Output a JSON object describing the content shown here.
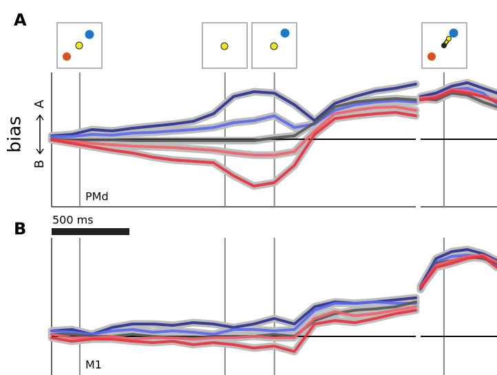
{
  "chart_data": [
    {
      "type": "line",
      "panel_label": "A",
      "area_label": "PMd",
      "ylabel": "bias",
      "y_up_label": "A",
      "y_down_label": "B",
      "ylim": [
        -9.8,
        9.7
      ],
      "hline": 0,
      "scalebar": {
        "value": 500,
        "label": "500 ms"
      },
      "segments": [
        {
          "xlim": [
            0,
            2340
          ],
          "vlines": [
            181,
            1114,
            1432
          ],
          "x": [
            0,
            130,
            260,
            390,
            520,
            650,
            780,
            910,
            1040,
            1170,
            1300,
            1430,
            1560,
            1690,
            1820,
            1950,
            2080,
            2210,
            2340
          ],
          "series": [
            {
              "color": "#2b2f8f",
              "values": [
                0.5,
                0.7,
                1.4,
                1.2,
                1.6,
                1.9,
                2.2,
                2.6,
                3.7,
                6.2,
                6.9,
                6.7,
                5.0,
                2.7,
                5.2,
                6.2,
                7.0,
                7.4,
                8.0
              ]
            },
            {
              "color": "#5b67f0",
              "values": [
                0.4,
                0.4,
                0.7,
                0.6,
                0.9,
                1.0,
                1.2,
                1.4,
                1.7,
                2.4,
                2.7,
                3.4,
                1.7,
                2.2,
                4.2,
                5.0,
                5.4,
                5.6,
                5.4
              ]
            },
            {
              "color": "#555555",
              "values": [
                0,
                -0.1,
                -0.1,
                -0.1,
                -0.2,
                -0.2,
                -0.2,
                -0.2,
                -0.2,
                -0.2,
                -0.2,
                0.2,
                0.5,
                2.4,
                4.7,
                5.4,
                5.7,
                5.9,
                5.7
              ]
            },
            {
              "color": "#f0606a",
              "values": [
                -0.1,
                -0.3,
                -0.6,
                -0.8,
                -1,
                -1.1,
                -1.2,
                -1.4,
                -1.6,
                -2,
                -2.3,
                -2.3,
                -1.8,
                1.2,
                3.7,
                4.2,
                4.6,
                4.7,
                4.2
              ]
            },
            {
              "color": "#e8303c",
              "values": [
                -0.1,
                -0.6,
                -1.1,
                -1.6,
                -2,
                -2.6,
                -3,
                -3.2,
                -3.4,
                -5.3,
                -6.8,
                -6.3,
                -3.8,
                0.7,
                3,
                3.4,
                3.7,
                3.9,
                3.4
              ]
            }
          ]
        },
        {
          "xlim": [
            0,
            490
          ],
          "vlines": [
            150
          ],
          "x": [
            0,
            100,
            200,
            300,
            400,
            490
          ],
          "series": [
            {
              "color": "#2b2f8f",
              "values": [
                6.2,
                6.7,
                7.7,
                8.2,
                7.4,
                6.7
              ]
            },
            {
              "color": "#5b67f0",
              "values": [
                5.7,
                6.2,
                7.2,
                7.4,
                6.7,
                5.2
              ]
            },
            {
              "color": "#555555",
              "values": [
                5.9,
                5.7,
                6.7,
                6.4,
                5.4,
                4.7
              ]
            },
            {
              "color": "#f0606a",
              "values": [
                6.0,
                6.2,
                7.2,
                7.0,
                6.2,
                5.7
              ]
            },
            {
              "color": "#e8303c",
              "values": [
                5.7,
                6.0,
                7.0,
                6.7,
                6.2,
                5.4
              ]
            }
          ]
        }
      ]
    },
    {
      "type": "line",
      "panel_label": "B",
      "area_label": "M1",
      "ylim": [
        -5.6,
        14.3
      ],
      "hline": 0,
      "segments": [
        {
          "xlim": [
            0,
            2340
          ],
          "vlines": [
            181,
            1114,
            1432
          ],
          "x": [
            0,
            130,
            260,
            390,
            520,
            650,
            780,
            910,
            1040,
            1170,
            1300,
            1430,
            1560,
            1690,
            1820,
            1950,
            2080,
            2210,
            2340
          ],
          "series": [
            {
              "color": "#2b2f8f",
              "values": [
                0.8,
                1.0,
                0.3,
                1.3,
                1.8,
                1.8,
                1.6,
                2.0,
                1.8,
                1.3,
                1.8,
                2.6,
                1.8,
                4.3,
                5.0,
                4.8,
                5.0,
                5.3,
                5.6
              ]
            },
            {
              "color": "#5b67f0",
              "values": [
                0.8,
                0.6,
                0.3,
                0.8,
                1.0,
                0.6,
                0.8,
                0.6,
                0.3,
                1.0,
                1.0,
                0.8,
                1.0,
                3.8,
                4.8,
                4.8,
                5.0,
                4.8,
                4.8
              ]
            },
            {
              "color": "#555555",
              "values": [
                0.3,
                0.3,
                0,
                0,
                0.3,
                0,
                -0.2,
                -0.2,
                0,
                0,
                0,
                0.3,
                0,
                2.3,
                3.3,
                3.8,
                4.0,
                4.3,
                5.0
              ]
            },
            {
              "color": "#f0606a",
              "values": [
                0.3,
                -0.2,
                -0.2,
                0,
                -0.4,
                -0.2,
                -0.2,
                -0.4,
                -0.2,
                -0.2,
                0,
                -0.2,
                -0.2,
                2.6,
                3.6,
                3.0,
                3.3,
                3.8,
                4.3
              ]
            },
            {
              "color": "#e8303c",
              "values": [
                -0.2,
                -0.7,
                -0.4,
                -0.4,
                -0.7,
                -0.9,
                -0.7,
                -1.2,
                -0.9,
                -1.2,
                -1.7,
                -1.4,
                -2.2,
                1.8,
                2.3,
                2.0,
                2.6,
                3.3,
                3.8
              ]
            }
          ]
        },
        {
          "xlim": [
            0,
            490
          ],
          "vlines": [
            150
          ],
          "x": [
            0,
            100,
            200,
            300,
            400,
            490
          ],
          "series": [
            {
              "color": "#2b2f8f",
              "values": [
                7.3,
                11.3,
                12.3,
                12.6,
                12.0,
                11.0
              ]
            },
            {
              "color": "#5b67f0",
              "values": [
                6.8,
                10.8,
                11.6,
                11.8,
                11.6,
                10.3
              ]
            },
            {
              "color": "#555555",
              "values": [
                7.0,
                10.6,
                11.0,
                11.6,
                11.3,
                10.6
              ]
            },
            {
              "color": "#f0606a",
              "values": [
                7.2,
                10.3,
                11.0,
                11.6,
                11.8,
                10.8
              ]
            },
            {
              "color": "#e8303c",
              "values": [
                7.0,
                10.0,
                10.6,
                11.3,
                11.6,
                10.0
              ]
            }
          ]
        }
      ]
    }
  ]
}
